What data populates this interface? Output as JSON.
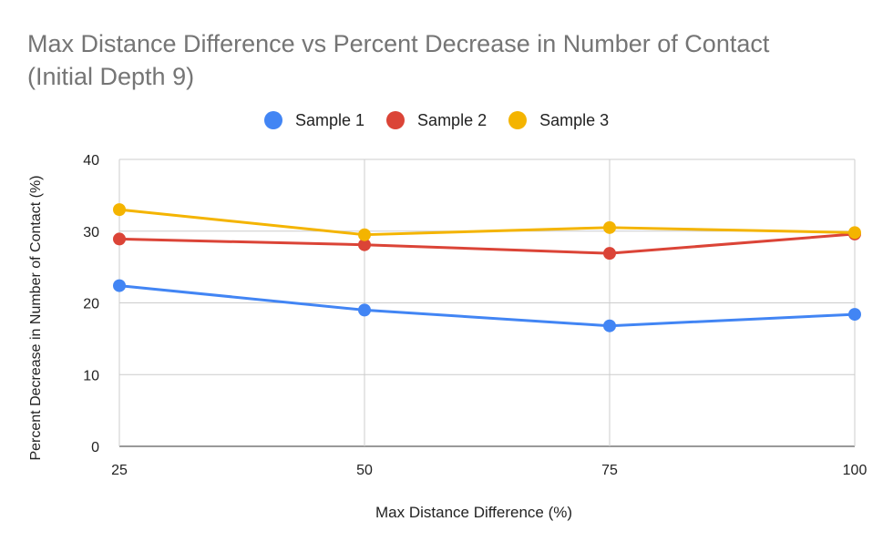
{
  "chart_data": {
    "type": "line",
    "title": [
      "Max Distance Difference vs Percent Decrease in Number of Contact",
      "(Initial Depth 9)"
    ],
    "xlabel": "Max Distance Difference (%)",
    "ylabel": "Percent Decrease in Number of Contact (%)",
    "x": [
      25,
      50,
      75,
      100
    ],
    "x_tick_labels": [
      "25",
      "50",
      "75",
      "100"
    ],
    "y_ticks": [
      0,
      10,
      20,
      30,
      40
    ],
    "y_tick_labels": [
      "0",
      "10",
      "20",
      "30",
      "40"
    ],
    "ylim": [
      0,
      40
    ],
    "grid": true,
    "legend_position": "top",
    "series": [
      {
        "name": "Sample 1",
        "color": "#4285F4",
        "values": [
          22.4,
          19.0,
          16.8,
          18.4
        ]
      },
      {
        "name": "Sample 2",
        "color": "#DB4437",
        "values": [
          28.9,
          28.1,
          26.9,
          29.6
        ]
      },
      {
        "name": "Sample 3",
        "color": "#F4B400",
        "values": [
          33.0,
          29.5,
          30.5,
          29.8
        ]
      }
    ]
  }
}
